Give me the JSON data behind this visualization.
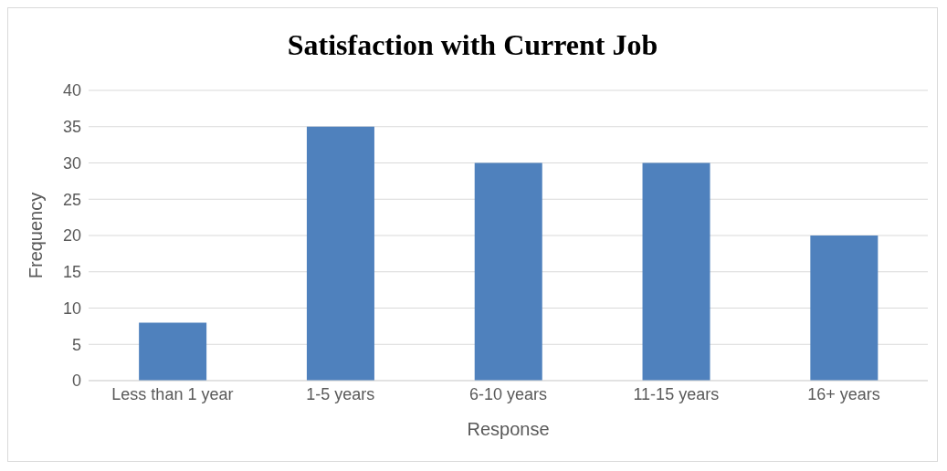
{
  "chart_data": {
    "type": "bar",
    "title": "Satisfaction with Current Job",
    "xlabel": "Response",
    "ylabel": "Frequency",
    "categories": [
      "Less than 1 year",
      "1-5 years",
      "6-10 years",
      "11-15 years",
      "16+ years"
    ],
    "values": [
      8,
      35,
      30,
      30,
      20
    ],
    "color": "#4f81bd",
    "ylim": [
      0,
      40
    ],
    "yticks": [
      0,
      5,
      10,
      15,
      20,
      25,
      30,
      35,
      40
    ],
    "grid": "y",
    "legend": false
  }
}
